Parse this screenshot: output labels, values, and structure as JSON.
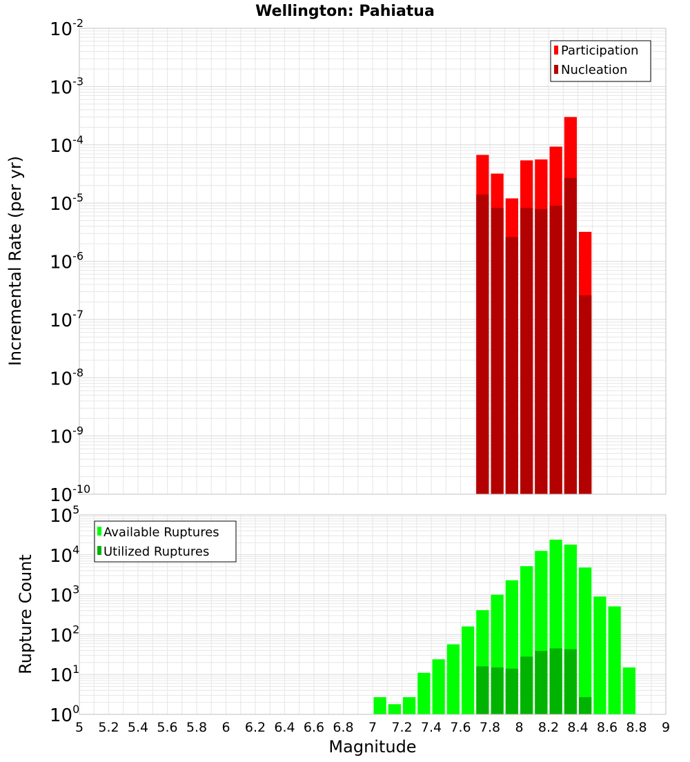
{
  "title": "Wellington: Pahiatua",
  "colors": {
    "participation": "#ff0000",
    "nucleation": "#b30000",
    "available": "#00ff00",
    "utilized": "#00b300",
    "grid": "#e6e6e6",
    "frame": "#c0c0c0"
  },
  "chart_data": [
    {
      "type": "bar",
      "title": "Wellington: Pahiatua",
      "ylabel": "Incremental Rate (per yr)",
      "xlabel": "",
      "xlim": [
        5,
        9
      ],
      "ylim": [
        1e-10,
        0.01
      ],
      "yscale": "log",
      "bin_width": 0.1,
      "ytick_exponents": [
        "-10",
        "-9",
        "-8",
        "-7",
        "-6",
        "-5",
        "-4",
        "-3",
        "-2"
      ],
      "legend": {
        "position": "top-right",
        "entries": [
          "Participation",
          "Nucleation"
        ]
      },
      "x": [
        7.75,
        7.85,
        7.95,
        8.05,
        8.15,
        8.25,
        8.35,
        8.45
      ],
      "series": [
        {
          "name": "Participation",
          "values": [
            6.7e-05,
            3.2e-05,
            1.2e-05,
            5.4e-05,
            5.6e-05,
            9.3e-05,
            0.0003,
            3.2e-06
          ]
        },
        {
          "name": "Nucleation",
          "values": [
            1.4e-05,
            8.2e-06,
            2.6e-06,
            8.2e-06,
            7.9e-06,
            9e-06,
            2.7e-05,
            2.6e-07
          ]
        }
      ]
    },
    {
      "type": "bar",
      "title": "",
      "ylabel": "Rupture Count",
      "xlabel": "Magnitude",
      "xlim": [
        5,
        9
      ],
      "ylim": [
        1,
        100000
      ],
      "yscale": "log",
      "bin_width": 0.1,
      "xticks": [
        "5",
        "5.2",
        "5.4",
        "5.6",
        "5.8",
        "6",
        "6.2",
        "6.4",
        "6.6",
        "6.8",
        "7",
        "7.2",
        "7.4",
        "7.6",
        "7.8",
        "8",
        "8.2",
        "8.4",
        "8.6",
        "8.8",
        "9"
      ],
      "ytick_exponents": [
        "0",
        "1",
        "2",
        "3",
        "4",
        "5"
      ],
      "legend": {
        "position": "top-left",
        "entries": [
          "Available Ruptures",
          "Utilized Ruptures"
        ]
      },
      "x": [
        7.05,
        7.15,
        7.25,
        7.35,
        7.45,
        7.55,
        7.65,
        7.75,
        7.85,
        7.95,
        8.05,
        8.15,
        8.25,
        8.35,
        8.45,
        8.55,
        8.65,
        8.75
      ],
      "series": [
        {
          "name": "Available Ruptures",
          "values": [
            2.7,
            1.8,
            2.7,
            11,
            24,
            57,
            160,
            410,
            1000,
            2300,
            5200,
            12500,
            24000,
            18000,
            4800,
            900,
            510,
            15
          ]
        },
        {
          "name": "Utilized Ruptures",
          "values": [
            0,
            0,
            0,
            0,
            0,
            0,
            0,
            16,
            15,
            14,
            28,
            39,
            45,
            43,
            2.7,
            0,
            0,
            0
          ]
        }
      ]
    }
  ]
}
